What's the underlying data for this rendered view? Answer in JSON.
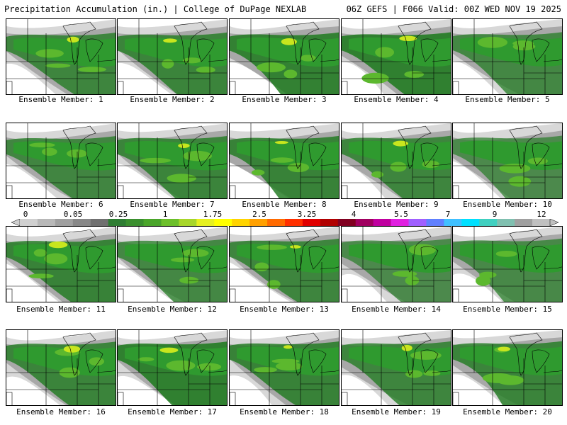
{
  "header": {
    "left_title": "Precipitation Accumulation (in.) | College of DuPage NEXLAB",
    "right_title": "06Z GEFS | F066 Valid: 00Z WED NOV 19 2025"
  },
  "members": [
    {
      "label": "Ensemble Member: 1",
      "intensity": 0.55
    },
    {
      "label": "Ensemble Member: 2",
      "intensity": 0.6
    },
    {
      "label": "Ensemble Member: 3",
      "intensity": 0.7
    },
    {
      "label": "Ensemble Member: 4",
      "intensity": 0.75
    },
    {
      "label": "Ensemble Member: 5",
      "intensity": 0.45
    },
    {
      "label": "Ensemble Member: 6",
      "intensity": 0.5
    },
    {
      "label": "Ensemble Member: 7",
      "intensity": 0.6
    },
    {
      "label": "Ensemble Member: 8",
      "intensity": 0.65
    },
    {
      "label": "Ensemble Member: 9",
      "intensity": 0.55
    },
    {
      "label": "Ensemble Member: 10",
      "intensity": 0.35
    },
    {
      "label": "Ensemble Member: 11",
      "intensity": 0.65
    },
    {
      "label": "Ensemble Member: 12",
      "intensity": 0.45
    },
    {
      "label": "Ensemble Member: 13",
      "intensity": 0.55
    },
    {
      "label": "Ensemble Member: 14",
      "intensity": 0.35
    },
    {
      "label": "Ensemble Member: 15",
      "intensity": 0.4
    },
    {
      "label": "Ensemble Member: 16",
      "intensity": 0.6
    },
    {
      "label": "Ensemble Member: 17",
      "intensity": 0.75
    },
    {
      "label": "Ensemble Member: 18",
      "intensity": 0.65
    },
    {
      "label": "Ensemble Member: 19",
      "intensity": 0.55
    },
    {
      "label": "Ensemble Member: 20",
      "intensity": 0.6
    }
  ],
  "colorbar": {
    "ticks": [
      "0",
      "0.05",
      "0.25",
      "1",
      "1.75",
      "2.5",
      "3.25",
      "4",
      "5.5",
      "7",
      "9",
      "12"
    ],
    "colors": [
      "#d0d0d0",
      "#b8b8b8",
      "#a0a0a0",
      "#888888",
      "#707070",
      "#2e7d32",
      "#3a8f2e",
      "#4aa52a",
      "#6cbf2a",
      "#a8d62a",
      "#e6f020",
      "#ffff00",
      "#ffd400",
      "#ffa000",
      "#ff6a00",
      "#ff3000",
      "#e00000",
      "#b00000",
      "#800020",
      "#a00060",
      "#c000a0",
      "#e020e0",
      "#a060ff",
      "#6080ff",
      "#40c0ff",
      "#00e0ff",
      "#40d0c0",
      "#80c0b0",
      "#a0a0a0",
      "#c0c0c0"
    ]
  },
  "map_colors": {
    "light_gray": "#d8d8d8",
    "gray": "#a8a8a8",
    "green_dark": "#1f7a1f",
    "green": "#2f9a2f",
    "green_light": "#5cb82e",
    "yellow": "#c8e61e"
  }
}
